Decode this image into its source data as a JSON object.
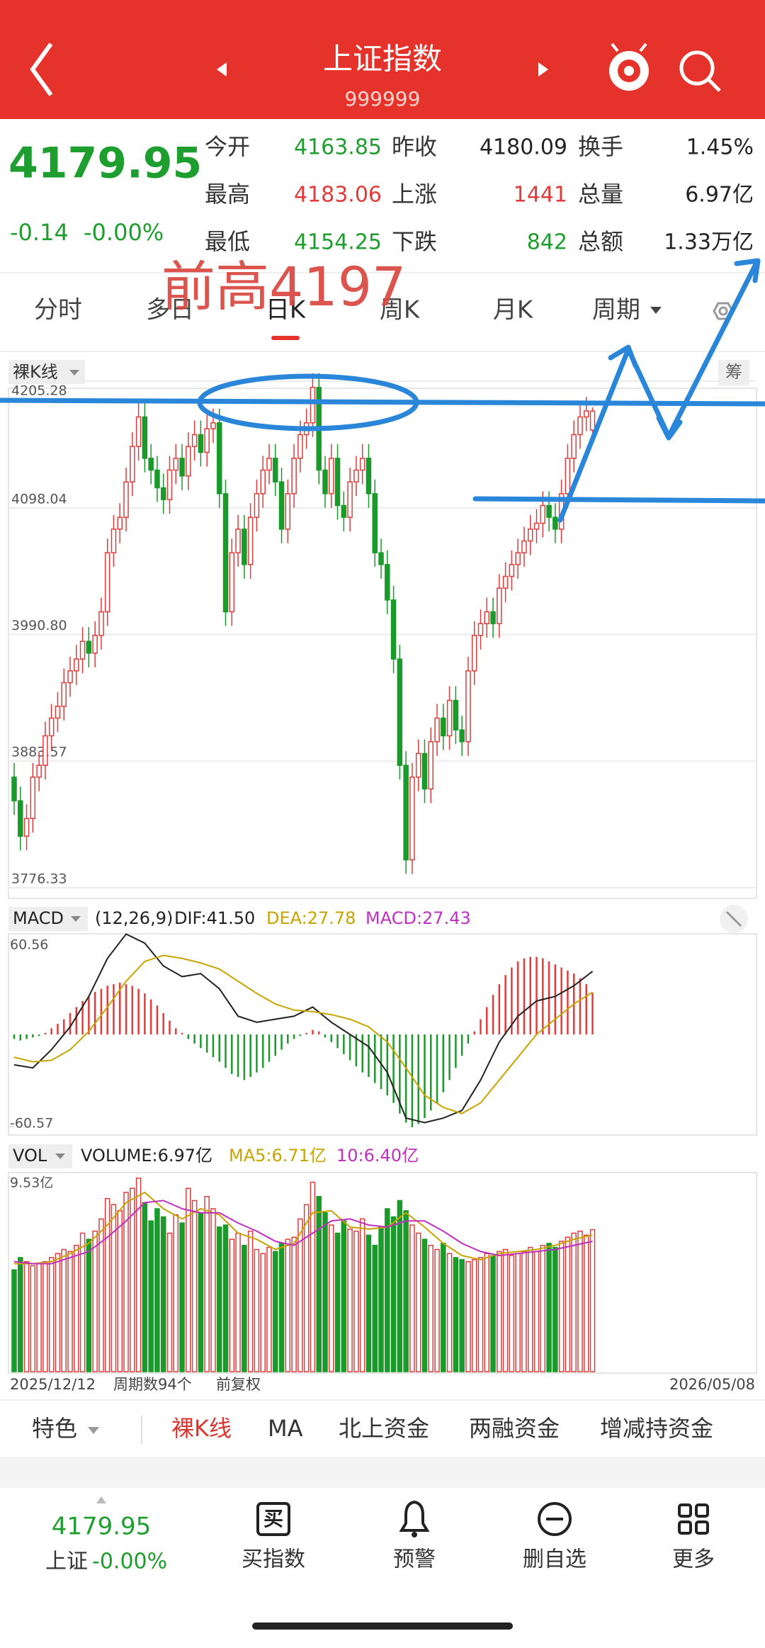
{
  "header": {
    "title": "上证指数",
    "code": "999999"
  },
  "quote": {
    "price": "4179.95",
    "change": "-0.14",
    "change_pct": "-0.00%",
    "fields": [
      {
        "label": "今开",
        "value": "4163.85",
        "color": "#1e9e2e"
      },
      {
        "label": "昨收",
        "value": "4180.09",
        "color": "#222222"
      },
      {
        "label": "换手",
        "value": "1.45%",
        "color": "#222222"
      },
      {
        "label": "最高",
        "value": "4183.06",
        "color": "#e23b3b"
      },
      {
        "label": "上涨",
        "value": "1441",
        "color": "#e23b3b"
      },
      {
        "label": "总量",
        "value": "6.97亿",
        "color": "#222222"
      },
      {
        "label": "最低",
        "value": "4154.25",
        "color": "#1e9e2e"
      },
      {
        "label": "下跌",
        "value": "842",
        "color": "#1e9e2e"
      },
      {
        "label": "总额",
        "value": "1.33万亿",
        "color": "#222222"
      }
    ]
  },
  "annotation": "前高4197",
  "tabs": {
    "items": [
      "分时",
      "多日",
      "日K",
      "周K",
      "月K",
      "周期"
    ],
    "selected": 2
  },
  "kline_panel": {
    "mode": "裸K线",
    "chip": "筹"
  },
  "macd_header": {
    "name": "MACD",
    "params": "(12,26,9)",
    "dif": "DIF:41.50",
    "dea": "DEA:27.78",
    "macd": "MACD:27.43"
  },
  "vol_header": {
    "name": "VOL",
    "volume": "VOLUME:6.97亿",
    "ma5": "MA5:6.71亿",
    "ma10": "10:6.40亿"
  },
  "chart_footer": {
    "start_date": "2025/12/12",
    "period_count": "周期数94个",
    "adjust": "前复权",
    "end_date": "2026/05/08"
  },
  "indicator_tabs": {
    "items": [
      "特色",
      "裸K线",
      "MA",
      "北上资金",
      "两融资金",
      "增减持资金"
    ],
    "selected": 1
  },
  "bottom_bar": {
    "price": "4179.95",
    "name": "上证",
    "change_pct": "-0.00%",
    "buy_icon": "买",
    "items": [
      "买指数",
      "预警",
      "删自选",
      "更多"
    ]
  },
  "chart_data": [
    {
      "type": "candlestick",
      "up_color": "#e23b3b",
      "down_color": "#1a9a2a",
      "ylim": [
        3776.33,
        4205.28
      ],
      "yticks": [
        4205.28,
        4098.04,
        {
          "value": 3990.8,
          "label": "3990.80"
        },
        3883.57,
        3776.33
      ],
      "open": [
        3870,
        3850,
        3820,
        3835,
        3870,
        3880,
        3905,
        3920,
        3930,
        3950,
        3960,
        3970,
        3985,
        3975,
        3990,
        4010,
        4060,
        4080,
        4090,
        4120,
        4150,
        4175,
        4140,
        4130,
        4115,
        4105,
        4130,
        4140,
        4125,
        4150,
        4160,
        4145,
        4165,
        4170,
        4110,
        4010,
        4060,
        4080,
        4050,
        4090,
        4110,
        4130,
        4140,
        4120,
        4080,
        4110,
        4140,
        4160,
        4170,
        4200,
        4130,
        4110,
        4140,
        4100,
        4090,
        4120,
        4130,
        4140,
        4110,
        4060,
        4050,
        4020,
        3970,
        3880,
        3800,
        3870,
        3890,
        3860,
        3900,
        3920,
        3905,
        3935,
        3910,
        3900,
        3960,
        3990,
        4000,
        4010,
        4000,
        4030,
        4040,
        4050,
        4060,
        4070,
        4080,
        4085,
        4100,
        4090,
        4080,
        4110,
        4140,
        4160,
        4175,
        4163.85
      ],
      "close": [
        3850,
        3820,
        3835,
        3870,
        3880,
        3905,
        3920,
        3930,
        3950,
        3960,
        3970,
        3985,
        3975,
        3990,
        4010,
        4060,
        4080,
        4090,
        4120,
        4150,
        4175,
        4140,
        4130,
        4115,
        4105,
        4130,
        4140,
        4125,
        4150,
        4160,
        4145,
        4165,
        4170,
        4110,
        4010,
        4060,
        4080,
        4050,
        4090,
        4110,
        4130,
        4140,
        4120,
        4080,
        4110,
        4140,
        4160,
        4170,
        4200,
        4130,
        4110,
        4140,
        4100,
        4090,
        4120,
        4130,
        4140,
        4110,
        4060,
        4050,
        4020,
        3970,
        3880,
        3800,
        3870,
        3890,
        3860,
        3900,
        3920,
        3905,
        3935,
        3910,
        3900,
        3960,
        3990,
        4000,
        4010,
        4000,
        4030,
        4040,
        4050,
        4060,
        4070,
        4080,
        4085,
        4100,
        4090,
        4080,
        4110,
        4140,
        4160,
        4175,
        4180.09,
        4179.95
      ],
      "high": [
        3882,
        3862,
        3847,
        3882,
        3892,
        3917,
        3932,
        3942,
        3962,
        3972,
        3982,
        3997,
        3997,
        4002,
        4022,
        4072,
        4092,
        4102,
        4132,
        4162,
        4187,
        4187,
        4152,
        4142,
        4127,
        4142,
        4152,
        4152,
        4162,
        4172,
        4172,
        4177,
        4182,
        4182,
        4122,
        4072,
        4092,
        4092,
        4102,
        4122,
        4142,
        4152,
        4152,
        4132,
        4122,
        4152,
        4172,
        4182,
        4212,
        4212,
        4142,
        4152,
        4152,
        4112,
        4132,
        4142,
        4152,
        4152,
        4122,
        4072,
        4062,
        4032,
        3982,
        3892,
        3882,
        3902,
        3902,
        3912,
        3932,
        3932,
        3947,
        3947,
        3922,
        3972,
        4002,
        4012,
        4022,
        4022,
        4042,
        4052,
        4062,
        4072,
        4082,
        4092,
        4097,
        4112,
        4112,
        4102,
        4122,
        4152,
        4172,
        4187,
        4192,
        4183.06
      ],
      "low": [
        3838,
        3808,
        3808,
        3823,
        3858,
        3868,
        3893,
        3908,
        3918,
        3938,
        3948,
        3958,
        3963,
        3963,
        3978,
        3998,
        4048,
        4068,
        4078,
        4108,
        4138,
        4128,
        4118,
        4103,
        4093,
        4093,
        4118,
        4113,
        4113,
        4138,
        4133,
        4133,
        4153,
        4098,
        3998,
        3998,
        4048,
        4038,
        4038,
        4078,
        4098,
        4118,
        4108,
        4068,
        4068,
        4098,
        4128,
        4148,
        4158,
        4118,
        4098,
        4098,
        4088,
        4078,
        4078,
        4108,
        4118,
        4098,
        4048,
        4038,
        4008,
        3958,
        3868,
        3788,
        3788,
        3858,
        3848,
        3848,
        3888,
        3893,
        3893,
        3898,
        3888,
        3888,
        3948,
        3978,
        3988,
        3988,
        3988,
        4018,
        4028,
        4038,
        4048,
        4058,
        4068,
        4073,
        4078,
        4068,
        4068,
        4098,
        4128,
        4148,
        4163,
        4154.25
      ]
    },
    {
      "type": "macd",
      "up_color": "#e23b3b",
      "down_color": "#1a9a2a",
      "dif_color": "#222222",
      "dea_color": "#c8a400",
      "ylim": [
        -60.57,
        60.56
      ],
      "yticks": [
        60.56,
        -60.57
      ],
      "values": [
        -3,
        -4,
        -3,
        -2,
        -1,
        1,
        4,
        7,
        10,
        14,
        18,
        22,
        25,
        28,
        30,
        32,
        33,
        34,
        33,
        32,
        30,
        27,
        23,
        19,
        14,
        9,
        4,
        1,
        -3,
        -6,
        -9,
        -12,
        -15,
        -18,
        -22,
        -26,
        -28,
        -30,
        -28,
        -25,
        -22,
        -18,
        -14,
        -10,
        -6,
        -3,
        -1,
        1,
        3,
        2,
        -2,
        -5,
        -9,
        -13,
        -17,
        -21,
        -25,
        -28,
        -32,
        -36,
        -40,
        -45,
        -52,
        -58,
        -61,
        -59,
        -55,
        -50,
        -45,
        -38,
        -30,
        -22,
        -14,
        -6,
        2,
        10,
        18,
        26,
        33,
        39,
        44,
        48,
        50,
        51,
        51,
        50,
        48,
        46,
        44,
        42,
        40,
        37,
        33,
        27.43
      ],
      "line_x": [
        0,
        3,
        6,
        9,
        12,
        15,
        18,
        21,
        24,
        27,
        30,
        33,
        36,
        39,
        42,
        45,
        48,
        51,
        54,
        57,
        60,
        63,
        66,
        69,
        72,
        75,
        78,
        81,
        84,
        87,
        90,
        93
      ],
      "dif": [
        -20,
        -22,
        -10,
        5,
        25,
        50,
        66,
        60,
        45,
        38,
        40,
        30,
        12,
        8,
        10,
        12,
        18,
        8,
        0,
        -8,
        -25,
        -55,
        -58,
        -55,
        -50,
        -30,
        -5,
        12,
        22,
        25,
        32,
        41.5
      ],
      "dea": [
        -15,
        -18,
        -17,
        -10,
        2,
        18,
        35,
        48,
        52,
        50,
        47,
        43,
        35,
        27,
        20,
        16,
        15,
        13,
        10,
        5,
        -5,
        -22,
        -40,
        -48,
        -52,
        -45,
        -30,
        -15,
        0,
        10,
        20,
        27.78
      ]
    },
    {
      "type": "volume",
      "up_color": "#e23b3b",
      "down_color": "#1a9a2a",
      "ma5_color": "#c8a400",
      "ma10_color": "#c030c0",
      "ylim": [
        0,
        9.53
      ],
      "yticks": [
        {
          "value": 9.53,
          "label": "9.53亿"
        }
      ],
      "values": [
        5.0,
        5.6,
        5.4,
        5.2,
        5.3,
        5.4,
        5.6,
        5.8,
        6.0,
        5.9,
        6.2,
        6.8,
        6.5,
        6.9,
        7.5,
        8.5,
        8.2,
        7.9,
        8.8,
        9.0,
        9.5,
        8.3,
        7.4,
        8.0,
        7.6,
        6.8,
        7.7,
        7.3,
        9.0,
        8.4,
        7.8,
        8.6,
        8.0,
        7.1,
        7.2,
        6.5,
        6.8,
        6.2,
        6.9,
        6.0,
        5.8,
        6.1,
        5.9,
        6.3,
        6.5,
        6.6,
        7.5,
        8.2,
        9.3,
        8.6,
        7.8,
        7.2,
        6.8,
        7.4,
        7.0,
        6.9,
        7.5,
        6.7,
        6.2,
        7.1,
        8.0,
        7.6,
        8.4,
        7.9,
        7.2,
        6.8,
        6.5,
        6.2,
        6.0,
        6.3,
        5.8,
        5.6,
        5.5,
        5.4,
        5.5,
        5.6,
        5.8,
        5.7,
        5.9,
        6.0,
        5.7,
        5.8,
        5.9,
        6.1,
        5.9,
        6.2,
        6.3,
        6.1,
        6.4,
        6.6,
        6.8,
        6.9,
        6.7,
        6.97
      ],
      "line_x": [
        0,
        3,
        6,
        9,
        12,
        15,
        18,
        21,
        24,
        27,
        30,
        33,
        36,
        39,
        42,
        45,
        48,
        51,
        54,
        57,
        60,
        63,
        66,
        69,
        72,
        75,
        78,
        81,
        84,
        87,
        90,
        93
      ],
      "ma5": [
        5.3,
        5.3,
        5.4,
        5.8,
        6.3,
        7.2,
        8.3,
        8.8,
        8.0,
        7.5,
        8.0,
        7.7,
        6.8,
        6.5,
        6.0,
        6.3,
        7.8,
        7.9,
        7.1,
        7.0,
        7.1,
        7.8,
        7.1,
        6.3,
        5.7,
        5.5,
        5.8,
        5.9,
        6.0,
        6.2,
        6.5,
        6.71
      ],
      "ma10": [
        5.4,
        5.3,
        5.3,
        5.6,
        5.9,
        6.6,
        7.4,
        8.3,
        8.4,
        8.0,
        7.8,
        7.8,
        7.3,
        6.9,
        6.4,
        6.2,
        6.8,
        7.4,
        7.5,
        7.2,
        7.1,
        7.4,
        7.4,
        6.9,
        6.3,
        5.9,
        5.7,
        5.8,
        5.9,
        6.0,
        6.2,
        6.4
      ]
    }
  ]
}
